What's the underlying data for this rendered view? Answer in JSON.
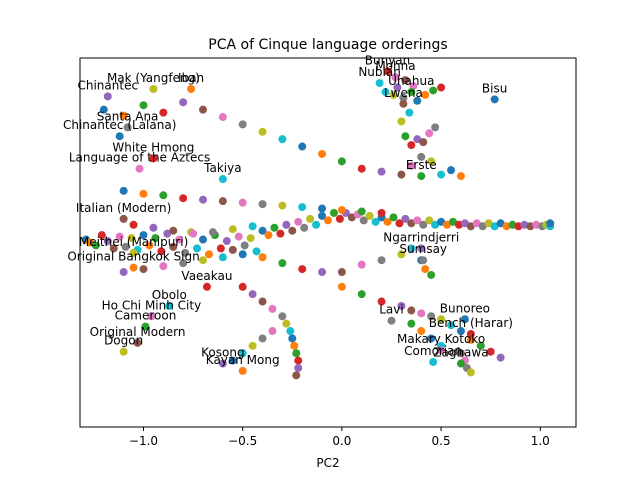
{
  "chart_data": {
    "type": "scatter",
    "title": "PCA of Cinque language orderings",
    "xlabel": "PC2",
    "ylabel": "",
    "xlim": [
      -1.32,
      1.18
    ],
    "ylim": [
      -1.25,
      1.25
    ],
    "grid": false,
    "legend": "none",
    "x_ticks": [
      {
        "value": -1.0,
        "label": "−1.0"
      },
      {
        "value": -0.5,
        "label": "−0.5"
      },
      {
        "value": 0.0,
        "label": "0.0"
      },
      {
        "value": 0.5,
        "label": "0.5"
      },
      {
        "value": 1.0,
        "label": "1.0"
      }
    ],
    "colors": [
      "#1f77b4",
      "#ff7f0e",
      "#2ca02c",
      "#d62728",
      "#9467bd",
      "#8c564b",
      "#e377c2",
      "#7f7f7f",
      "#bcbd22",
      "#17becf"
    ],
    "points": [
      {
        "x": 0.77,
        "y": 0.97,
        "label": "Bisu"
      },
      {
        "x": 0.23,
        "y": 1.16,
        "label": "Bunyan"
      },
      {
        "x": 0.27,
        "y": 1.12,
        "label": "Mohna"
      },
      {
        "x": 0.19,
        "y": 1.08,
        "label": "Nubian"
      },
      {
        "x": 0.35,
        "y": 1.02,
        "label": "Uhahua"
      },
      {
        "x": 0.31,
        "y": 0.94,
        "label": "Lwena"
      },
      {
        "x": -0.95,
        "y": 1.04,
        "label": "Mak (Yangfeng)"
      },
      {
        "x": -0.76,
        "y": 1.04,
        "label": "Iban"
      },
      {
        "x": -1.18,
        "y": 0.99,
        "label": "Chinantec"
      },
      {
        "x": -1.08,
        "y": 0.78,
        "label": "Santa Ana"
      },
      {
        "x": -1.12,
        "y": 0.72,
        "label": "Chinantec (Lalana)"
      },
      {
        "x": -0.95,
        "y": 0.57,
        "label": "White Hmong"
      },
      {
        "x": -1.02,
        "y": 0.5,
        "label": "Language of the Aztecs"
      },
      {
        "x": -0.6,
        "y": 0.43,
        "label": "Takiya"
      },
      {
        "x": 0.4,
        "y": 0.45,
        "label": "Erste"
      },
      {
        "x": -1.1,
        "y": 0.16,
        "label": "Italian (Modern)"
      },
      {
        "x": -1.05,
        "y": -0.07,
        "label": "Meithei (Manipuri)"
      },
      {
        "x": -1.05,
        "y": -0.17,
        "label": "Original Bangkok Sign"
      },
      {
        "x": 0.4,
        "y": -0.04,
        "label": "Ngarrindjerri"
      },
      {
        "x": 0.41,
        "y": -0.12,
        "label": "Sumsay"
      },
      {
        "x": 1.05,
        "y": 0.13,
        "label": ""
      },
      {
        "x": -0.68,
        "y": -0.3,
        "label": "Vaeakau"
      },
      {
        "x": -0.96,
        "y": -0.5,
        "label": "Ho Chi Minh City"
      },
      {
        "x": -0.87,
        "y": -0.43,
        "label": "Obolo"
      },
      {
        "x": -0.99,
        "y": -0.57,
        "label": "Cameroon"
      },
      {
        "x": -1.03,
        "y": -0.68,
        "label": "Original Modern"
      },
      {
        "x": -1.1,
        "y": -0.74,
        "label": "Dogon"
      },
      {
        "x": -0.5,
        "y": -0.87,
        "label": "Kayan Mong"
      },
      {
        "x": -0.6,
        "y": -0.82,
        "label": "Kosong"
      },
      {
        "x": 0.25,
        "y": -0.53,
        "label": "Lavi"
      },
      {
        "x": 0.62,
        "y": -0.52,
        "label": "Bunoreo"
      },
      {
        "x": 0.65,
        "y": -0.62,
        "label": "Bench (Harar)"
      },
      {
        "x": 0.5,
        "y": -0.73,
        "label": "Makary Kotoko"
      },
      {
        "x": 0.46,
        "y": -0.81,
        "label": "Comorian"
      },
      {
        "x": 0.6,
        "y": -0.82,
        "label": "Zaghawa"
      }
    ],
    "series_points": [
      [
        -1.3,
        0.02
      ],
      [
        -1.27,
        0.0
      ],
      [
        -1.24,
        -0.02
      ],
      [
        -1.21,
        0.05
      ],
      [
        -1.18,
        0.01
      ],
      [
        -1.15,
        -0.04
      ],
      [
        -1.12,
        0.04
      ],
      [
        -1.09,
        -0.03
      ],
      [
        -1.06,
        0.03
      ],
      [
        -1.03,
        -0.05
      ],
      [
        -1.0,
        0.05
      ],
      [
        -0.97,
        -0.02
      ],
      [
        -0.94,
        0.03
      ],
      [
        -0.91,
        -0.06
      ],
      [
        -0.88,
        0.06
      ],
      [
        -0.85,
        -0.03
      ],
      [
        -0.82,
        0.02
      ],
      [
        -0.79,
        -0.07
      ],
      [
        -0.76,
        0.07
      ],
      [
        -0.73,
        -0.04
      ],
      [
        -0.7,
        0.02
      ],
      [
        -0.67,
        -0.08
      ],
      [
        -0.64,
        0.05
      ],
      [
        -0.61,
        -0.04
      ],
      [
        -0.58,
        0.01
      ],
      [
        -0.55,
        -0.05
      ],
      [
        -0.52,
        0.04
      ],
      [
        -0.49,
        -0.02
      ],
      [
        -0.46,
        0.03
      ],
      [
        -0.43,
        -0.06
      ],
      [
        -0.4,
        0.08
      ],
      [
        -0.37,
        0.05
      ],
      [
        -0.34,
        0.1
      ],
      [
        -0.31,
        0.06
      ],
      [
        -0.28,
        0.12
      ],
      [
        -0.25,
        0.08
      ],
      [
        -0.22,
        0.14
      ],
      [
        -0.19,
        0.1
      ],
      [
        -0.16,
        0.16
      ],
      [
        -0.13,
        0.12
      ],
      [
        -0.1,
        0.18
      ],
      [
        -0.07,
        0.15
      ],
      [
        -0.04,
        0.2
      ],
      [
        -0.01,
        0.16
      ],
      [
        0.02,
        0.2
      ],
      [
        0.05,
        0.17
      ],
      [
        0.08,
        0.19
      ],
      [
        0.11,
        0.15
      ],
      [
        0.14,
        0.18
      ],
      [
        0.17,
        0.14
      ],
      [
        0.2,
        0.17
      ],
      [
        0.23,
        0.14
      ],
      [
        0.26,
        0.17
      ],
      [
        0.29,
        0.13
      ],
      [
        0.32,
        0.16
      ],
      [
        0.35,
        0.13
      ],
      [
        0.38,
        0.15
      ],
      [
        0.41,
        0.12
      ],
      [
        0.44,
        0.15
      ],
      [
        0.47,
        0.12
      ],
      [
        0.5,
        0.14
      ],
      [
        0.53,
        0.12
      ],
      [
        0.56,
        0.14
      ],
      [
        0.59,
        0.12
      ],
      [
        0.62,
        0.13
      ],
      [
        0.65,
        0.11
      ],
      [
        0.68,
        0.13
      ],
      [
        0.71,
        0.11
      ],
      [
        0.74,
        0.13
      ],
      [
        0.77,
        0.11
      ],
      [
        0.8,
        0.13
      ],
      [
        0.83,
        0.11
      ],
      [
        0.86,
        0.12
      ],
      [
        0.89,
        0.11
      ],
      [
        0.92,
        0.12
      ],
      [
        0.95,
        0.11
      ],
      [
        0.98,
        0.12
      ],
      [
        1.01,
        0.11
      ],
      [
        1.03,
        0.12
      ],
      [
        1.05,
        0.11
      ],
      [
        -1.2,
        0.9
      ],
      [
        -1.1,
        0.86
      ],
      [
        -1.0,
        0.93
      ],
      [
        -0.9,
        0.88
      ],
      [
        -0.8,
        0.95
      ],
      [
        -0.7,
        0.9
      ],
      [
        -0.6,
        0.85
      ],
      [
        -0.5,
        0.8
      ],
      [
        -0.4,
        0.75
      ],
      [
        -0.3,
        0.7
      ],
      [
        -0.2,
        0.65
      ],
      [
        -0.1,
        0.6
      ],
      [
        0.0,
        0.55
      ],
      [
        0.1,
        0.5
      ],
      [
        0.2,
        0.48
      ],
      [
        0.3,
        0.46
      ],
      [
        0.35,
        0.52
      ],
      [
        0.4,
        0.58
      ],
      [
        0.45,
        0.55
      ],
      [
        0.5,
        0.46
      ],
      [
        0.55,
        0.49
      ],
      [
        0.6,
        0.45
      ],
      [
        0.32,
        0.72
      ],
      [
        0.35,
        0.66
      ],
      [
        0.38,
        0.7
      ],
      [
        0.41,
        0.68
      ],
      [
        0.44,
        0.74
      ],
      [
        0.47,
        0.78
      ],
      [
        0.3,
        0.82
      ],
      [
        0.34,
        0.88
      ],
      [
        0.38,
        0.96
      ],
      [
        0.42,
        1.0
      ],
      [
        0.46,
        1.03
      ],
      [
        0.5,
        1.05
      ],
      [
        0.28,
        1.05
      ],
      [
        0.32,
        1.1
      ],
      [
        0.36,
        1.06
      ],
      [
        0.31,
        0.98
      ],
      [
        0.26,
        1.0
      ],
      [
        0.22,
        1.02
      ],
      [
        -1.1,
        0.35
      ],
      [
        -1.0,
        0.33
      ],
      [
        -0.9,
        0.32
      ],
      [
        -0.8,
        0.3
      ],
      [
        -0.7,
        0.29
      ],
      [
        -0.6,
        0.28
      ],
      [
        -0.5,
        0.27
      ],
      [
        -0.4,
        0.26
      ],
      [
        -0.3,
        0.25
      ],
      [
        -0.2,
        0.24
      ],
      [
        -0.1,
        0.23
      ],
      [
        0.0,
        0.22
      ],
      [
        0.1,
        0.21
      ],
      [
        0.2,
        0.2
      ],
      [
        -1.1,
        -0.2
      ],
      [
        -1.0,
        -0.18
      ],
      [
        -0.9,
        -0.16
      ],
      [
        -0.8,
        -0.14
      ],
      [
        -0.7,
        -0.12
      ],
      [
        -0.6,
        -0.1
      ],
      [
        -0.5,
        -0.08
      ],
      [
        -0.4,
        -0.1
      ],
      [
        -0.3,
        -0.14
      ],
      [
        -0.2,
        -0.18
      ],
      [
        -0.1,
        -0.2
      ],
      [
        0.0,
        -0.2
      ],
      [
        0.1,
        -0.15
      ],
      [
        0.2,
        -0.12
      ],
      [
        0.3,
        -0.08
      ],
      [
        0.35,
        -0.04
      ],
      [
        0.4,
        -0.12
      ],
      [
        0.42,
        -0.18
      ],
      [
        0.45,
        -0.22
      ],
      [
        -0.5,
        -0.3
      ],
      [
        -0.45,
        -0.35
      ],
      [
        -0.4,
        -0.4
      ],
      [
        -0.35,
        -0.45
      ],
      [
        -0.3,
        -0.5
      ],
      [
        -0.28,
        -0.55
      ],
      [
        -0.26,
        -0.6
      ],
      [
        -0.25,
        -0.65
      ],
      [
        -0.24,
        -0.7
      ],
      [
        -0.23,
        -0.75
      ],
      [
        -0.22,
        -0.8
      ],
      [
        -0.22,
        -0.85
      ],
      [
        -0.23,
        -0.9
      ],
      [
        -0.35,
        -0.6
      ],
      [
        -0.4,
        -0.65
      ],
      [
        -0.45,
        -0.7
      ],
      [
        -0.5,
        -0.75
      ],
      [
        -0.55,
        -0.8
      ],
      [
        0.0,
        -0.3
      ],
      [
        0.1,
        -0.35
      ],
      [
        0.2,
        -0.4
      ],
      [
        0.3,
        -0.43
      ],
      [
        0.35,
        -0.46
      ],
      [
        0.4,
        -0.48
      ],
      [
        0.45,
        -0.5
      ],
      [
        0.5,
        -0.52
      ],
      [
        0.55,
        -0.56
      ],
      [
        0.6,
        -0.6
      ],
      [
        0.65,
        -0.66
      ],
      [
        0.7,
        -0.7
      ],
      [
        0.75,
        -0.74
      ],
      [
        0.8,
        -0.78
      ],
      [
        0.6,
        -0.75
      ],
      [
        0.62,
        -0.8
      ],
      [
        0.63,
        -0.85
      ],
      [
        0.65,
        -0.88
      ],
      [
        0.5,
        -0.7
      ],
      [
        0.45,
        -0.65
      ],
      [
        0.4,
        -0.6
      ],
      [
        0.35,
        -0.55
      ],
      [
        -1.05,
        0.12
      ],
      [
        -0.95,
        0.1
      ],
      [
        -0.85,
        0.08
      ],
      [
        -0.75,
        0.06
      ],
      [
        -0.65,
        0.07
      ],
      [
        -0.55,
        0.09
      ],
      [
        -0.45,
        0.11
      ]
    ]
  }
}
